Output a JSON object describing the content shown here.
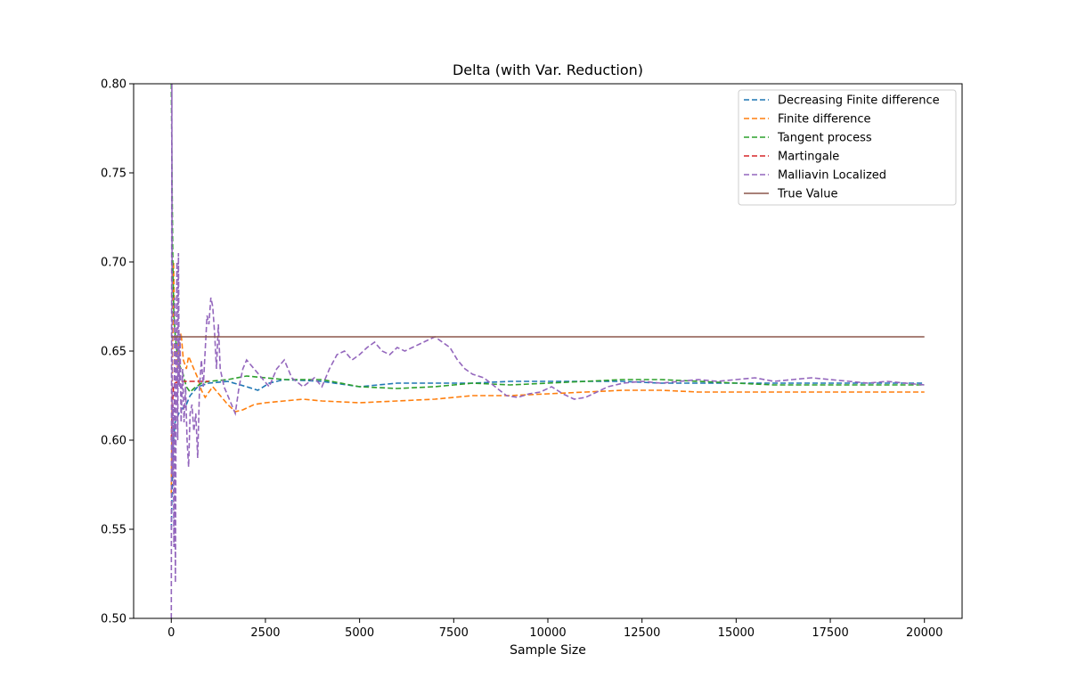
{
  "chart_data": {
    "type": "line",
    "title": "Delta (with Var. Reduction)",
    "xlabel": "Sample Size",
    "ylabel": "",
    "xlim": [
      -1000,
      21000
    ],
    "ylim": [
      0.5,
      0.8
    ],
    "xticks": [
      0,
      2500,
      5000,
      7500,
      10000,
      12500,
      15000,
      17500,
      20000
    ],
    "yticks": [
      0.5,
      0.55,
      0.6,
      0.65,
      0.7,
      0.75,
      0.8
    ],
    "ytick_labels": [
      "0.50",
      "0.55",
      "0.60",
      "0.65",
      "0.70",
      "0.75",
      "0.80"
    ],
    "grid": false,
    "legend_position": "upper right",
    "series": [
      {
        "name": "Decreasing Finite difference",
        "color": "#1f77b4",
        "style": "dashed",
        "points": [
          [
            0,
            0.55
          ],
          [
            30,
            0.58
          ],
          [
            60,
            0.6
          ],
          [
            100,
            0.61
          ],
          [
            150,
            0.612
          ],
          [
            200,
            0.615
          ],
          [
            300,
            0.618
          ],
          [
            400,
            0.62
          ],
          [
            500,
            0.625
          ],
          [
            700,
            0.63
          ],
          [
            1000,
            0.632
          ],
          [
            1500,
            0.633
          ],
          [
            2000,
            0.63
          ],
          [
            2300,
            0.628
          ],
          [
            2600,
            0.632
          ],
          [
            3000,
            0.634
          ],
          [
            4000,
            0.633
          ],
          [
            5000,
            0.63
          ],
          [
            6000,
            0.632
          ],
          [
            7000,
            0.632
          ],
          [
            8000,
            0.632
          ],
          [
            9000,
            0.633
          ],
          [
            10000,
            0.633
          ],
          [
            11000,
            0.633
          ],
          [
            12000,
            0.633
          ],
          [
            13000,
            0.632
          ],
          [
            14000,
            0.632
          ],
          [
            15000,
            0.632
          ],
          [
            16000,
            0.632
          ],
          [
            17000,
            0.632
          ],
          [
            18000,
            0.632
          ],
          [
            19000,
            0.632
          ],
          [
            20000,
            0.632
          ]
        ]
      },
      {
        "name": "Finite difference",
        "color": "#ff7f0e",
        "style": "dashed",
        "points": [
          [
            0,
            0.57
          ],
          [
            20,
            0.62
          ],
          [
            40,
            0.66
          ],
          [
            60,
            0.7
          ],
          [
            90,
            0.665
          ],
          [
            120,
            0.65
          ],
          [
            160,
            0.64
          ],
          [
            200,
            0.655
          ],
          [
            260,
            0.66
          ],
          [
            320,
            0.645
          ],
          [
            400,
            0.64
          ],
          [
            460,
            0.647
          ],
          [
            520,
            0.644
          ],
          [
            600,
            0.64
          ],
          [
            700,
            0.635
          ],
          [
            800,
            0.628
          ],
          [
            900,
            0.624
          ],
          [
            1100,
            0.63
          ],
          [
            1300,
            0.625
          ],
          [
            1500,
            0.62
          ],
          [
            1700,
            0.616
          ],
          [
            1900,
            0.617
          ],
          [
            2200,
            0.62
          ],
          [
            2500,
            0.621
          ],
          [
            3000,
            0.622
          ],
          [
            3500,
            0.623
          ],
          [
            4000,
            0.622
          ],
          [
            5000,
            0.621
          ],
          [
            6000,
            0.622
          ],
          [
            7000,
            0.623
          ],
          [
            8000,
            0.625
          ],
          [
            9000,
            0.625
          ],
          [
            10000,
            0.626
          ],
          [
            11000,
            0.627
          ],
          [
            12000,
            0.628
          ],
          [
            13000,
            0.628
          ],
          [
            14000,
            0.627
          ],
          [
            15000,
            0.627
          ],
          [
            16000,
            0.627
          ],
          [
            17000,
            0.627
          ],
          [
            18000,
            0.627
          ],
          [
            19000,
            0.627
          ],
          [
            20000,
            0.627
          ]
        ]
      },
      {
        "name": "Tangent process",
        "color": "#2ca02c",
        "style": "dashed",
        "points": [
          [
            0,
            0.8
          ],
          [
            20,
            0.75
          ],
          [
            40,
            0.7
          ],
          [
            70,
            0.67
          ],
          [
            100,
            0.66
          ],
          [
            150,
            0.65
          ],
          [
            200,
            0.643
          ],
          [
            300,
            0.638
          ],
          [
            400,
            0.63
          ],
          [
            500,
            0.627
          ],
          [
            600,
            0.629
          ],
          [
            800,
            0.632
          ],
          [
            1000,
            0.633
          ],
          [
            1500,
            0.634
          ],
          [
            2000,
            0.636
          ],
          [
            2500,
            0.635
          ],
          [
            3000,
            0.634
          ],
          [
            4000,
            0.634
          ],
          [
            5000,
            0.63
          ],
          [
            6000,
            0.629
          ],
          [
            7000,
            0.63
          ],
          [
            8000,
            0.632
          ],
          [
            9000,
            0.631
          ],
          [
            10000,
            0.632
          ],
          [
            11000,
            0.633
          ],
          [
            12000,
            0.634
          ],
          [
            13000,
            0.634
          ],
          [
            14000,
            0.633
          ],
          [
            15000,
            0.632
          ],
          [
            16000,
            0.631
          ],
          [
            17000,
            0.631
          ],
          [
            18000,
            0.631
          ],
          [
            19000,
            0.631
          ],
          [
            20000,
            0.631
          ]
        ]
      },
      {
        "name": "Martingale",
        "color": "#d62728",
        "style": "dashed",
        "points": [
          [
            0,
            0.6
          ],
          [
            30,
            0.62
          ],
          [
            60,
            0.63
          ],
          [
            100,
            0.632
          ],
          [
            200,
            0.633
          ],
          [
            500,
            0.633
          ],
          [
            1000,
            0.633
          ]
        ]
      },
      {
        "name": "Malliavin Localized",
        "color": "#9467bd",
        "style": "dashed",
        "points": [
          [
            0,
            0.5
          ],
          [
            15,
            0.8
          ],
          [
            30,
            0.58
          ],
          [
            50,
            0.62
          ],
          [
            70,
            0.54
          ],
          [
            90,
            0.68
          ],
          [
            110,
            0.52
          ],
          [
            130,
            0.64
          ],
          [
            150,
            0.7
          ],
          [
            170,
            0.6
          ],
          [
            190,
            0.705
          ],
          [
            210,
            0.63
          ],
          [
            230,
            0.66
          ],
          [
            260,
            0.61
          ],
          [
            300,
            0.64
          ],
          [
            340,
            0.61
          ],
          [
            380,
            0.63
          ],
          [
            420,
            0.6
          ],
          [
            460,
            0.585
          ],
          [
            500,
            0.615
          ],
          [
            550,
            0.62
          ],
          [
            600,
            0.605
          ],
          [
            650,
            0.615
          ],
          [
            700,
            0.59
          ],
          [
            750,
            0.63
          ],
          [
            800,
            0.645
          ],
          [
            850,
            0.63
          ],
          [
            900,
            0.65
          ],
          [
            950,
            0.67
          ],
          [
            1000,
            0.665
          ],
          [
            1050,
            0.68
          ],
          [
            1100,
            0.675
          ],
          [
            1150,
            0.66
          ],
          [
            1200,
            0.64
          ],
          [
            1250,
            0.665
          ],
          [
            1300,
            0.64
          ],
          [
            1400,
            0.63
          ],
          [
            1500,
            0.625
          ],
          [
            1600,
            0.62
          ],
          [
            1700,
            0.615
          ],
          [
            1800,
            0.63
          ],
          [
            1900,
            0.64
          ],
          [
            2000,
            0.645
          ],
          [
            2200,
            0.64
          ],
          [
            2400,
            0.635
          ],
          [
            2600,
            0.63
          ],
          [
            2800,
            0.64
          ],
          [
            3000,
            0.645
          ],
          [
            3200,
            0.635
          ],
          [
            3500,
            0.63
          ],
          [
            3800,
            0.635
          ],
          [
            4000,
            0.63
          ],
          [
            4200,
            0.64
          ],
          [
            4400,
            0.648
          ],
          [
            4600,
            0.65
          ],
          [
            4800,
            0.645
          ],
          [
            5000,
            0.648
          ],
          [
            5200,
            0.652
          ],
          [
            5400,
            0.655
          ],
          [
            5600,
            0.65
          ],
          [
            5800,
            0.648
          ],
          [
            6000,
            0.652
          ],
          [
            6200,
            0.65
          ],
          [
            6400,
            0.652
          ],
          [
            6600,
            0.654
          ],
          [
            6800,
            0.656
          ],
          [
            7000,
            0.658
          ],
          [
            7200,
            0.655
          ],
          [
            7400,
            0.652
          ],
          [
            7600,
            0.645
          ],
          [
            7800,
            0.64
          ],
          [
            8000,
            0.637
          ],
          [
            8300,
            0.635
          ],
          [
            8600,
            0.63
          ],
          [
            8900,
            0.625
          ],
          [
            9200,
            0.624
          ],
          [
            9500,
            0.626
          ],
          [
            9800,
            0.627
          ],
          [
            10100,
            0.63
          ],
          [
            10400,
            0.626
          ],
          [
            10700,
            0.623
          ],
          [
            11000,
            0.624
          ],
          [
            11300,
            0.627
          ],
          [
            11600,
            0.63
          ],
          [
            12000,
            0.632
          ],
          [
            12500,
            0.633
          ],
          [
            13000,
            0.632
          ],
          [
            13500,
            0.633
          ],
          [
            14000,
            0.634
          ],
          [
            14500,
            0.633
          ],
          [
            15000,
            0.634
          ],
          [
            15500,
            0.635
          ],
          [
            16000,
            0.633
          ],
          [
            16500,
            0.634
          ],
          [
            17000,
            0.635
          ],
          [
            17500,
            0.634
          ],
          [
            18000,
            0.633
          ],
          [
            18500,
            0.632
          ],
          [
            19000,
            0.633
          ],
          [
            19500,
            0.632
          ],
          [
            20000,
            0.631
          ]
        ]
      },
      {
        "name": "True Value",
        "color": "#8c564b",
        "style": "solid",
        "points": [
          [
            0,
            0.658
          ],
          [
            20000,
            0.658
          ]
        ]
      }
    ]
  }
}
